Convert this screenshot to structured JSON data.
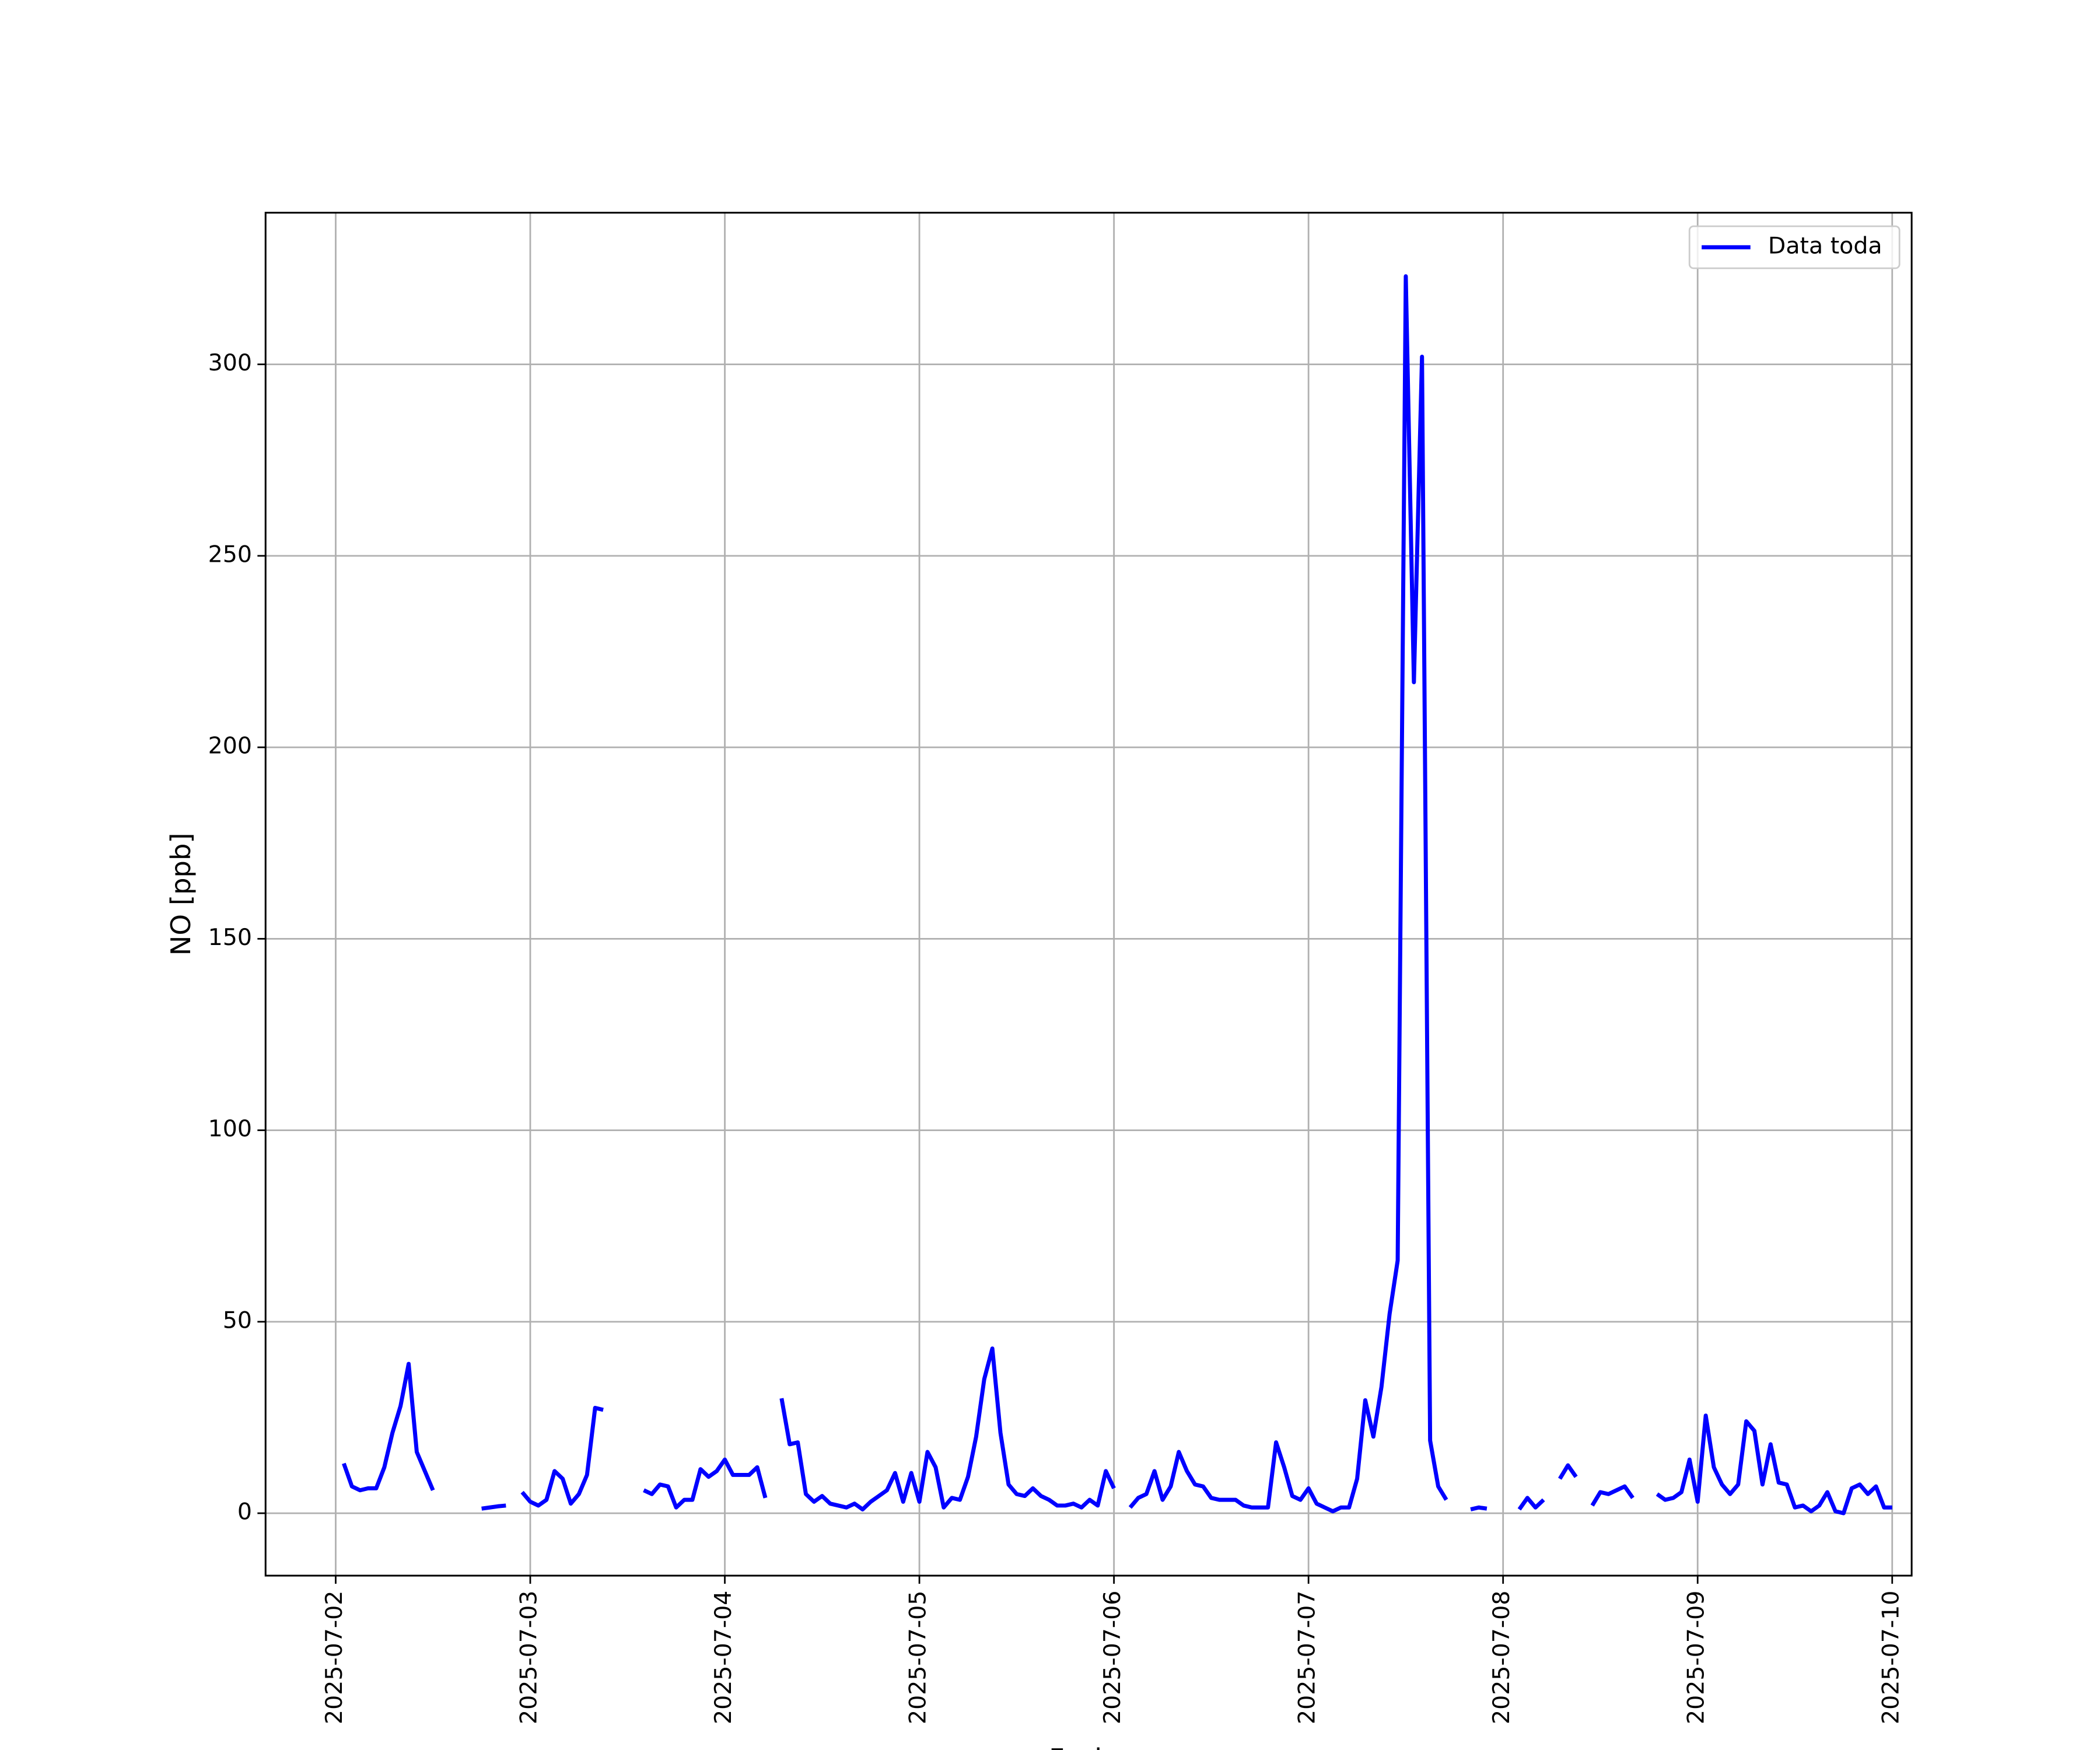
{
  "chart_data": {
    "type": "line",
    "xlabel": "Fecha",
    "ylabel": "NO [ppb]",
    "grid": true,
    "legend": "upper right",
    "series": [
      {
        "name": "Data toda",
        "color": "#0000ff",
        "x": [
          "2025-07-02 01:00",
          "2025-07-02 02:00",
          "2025-07-02 03:00",
          "2025-07-02 04:00",
          "2025-07-02 05:00",
          "2025-07-02 06:00",
          "2025-07-02 07:00",
          "2025-07-02 08:00",
          "2025-07-02 09:00",
          "2025-07-02 10:00",
          "2025-07-02 11:00",
          "2025-07-02 12:00",
          "2025-07-02 13:00",
          "2025-07-02 14:00",
          "2025-07-02 15:00",
          "2025-07-02 16:00",
          "2025-07-02 17:00",
          "2025-07-02 18:00",
          "2025-07-02 19:00",
          "2025-07-02 20:00",
          "2025-07-02 21:00",
          "2025-07-02 22:00",
          "2025-07-02 23:00",
          "2025-07-03 00:00",
          "2025-07-03 01:00",
          "2025-07-03 02:00",
          "2025-07-03 03:00",
          "2025-07-03 04:00",
          "2025-07-03 05:00",
          "2025-07-03 06:00",
          "2025-07-03 07:00",
          "2025-07-03 08:00",
          "2025-07-03 09:00",
          "2025-07-03 10:00",
          "2025-07-03 11:00",
          "2025-07-03 12:00",
          "2025-07-03 13:00",
          "2025-07-03 14:00",
          "2025-07-03 15:00",
          "2025-07-03 16:00",
          "2025-07-03 17:00",
          "2025-07-03 18:00",
          "2025-07-03 19:00",
          "2025-07-03 20:00",
          "2025-07-03 21:00",
          "2025-07-03 22:00",
          "2025-07-03 23:00",
          "2025-07-04 00:00",
          "2025-07-04 01:00",
          "2025-07-04 02:00",
          "2025-07-04 03:00",
          "2025-07-04 04:00",
          "2025-07-04 05:00",
          "2025-07-04 06:00",
          "2025-07-04 07:00",
          "2025-07-04 08:00",
          "2025-07-04 09:00",
          "2025-07-04 10:00",
          "2025-07-04 11:00",
          "2025-07-04 12:00",
          "2025-07-04 13:00",
          "2025-07-04 14:00",
          "2025-07-04 15:00",
          "2025-07-04 16:00",
          "2025-07-04 17:00",
          "2025-07-04 18:00",
          "2025-07-04 19:00",
          "2025-07-04 20:00",
          "2025-07-04 21:00",
          "2025-07-04 22:00",
          "2025-07-04 23:00",
          "2025-07-05 00:00",
          "2025-07-05 01:00",
          "2025-07-05 02:00",
          "2025-07-05 03:00",
          "2025-07-05 04:00",
          "2025-07-05 05:00",
          "2025-07-05 06:00",
          "2025-07-05 07:00",
          "2025-07-05 08:00",
          "2025-07-05 09:00",
          "2025-07-05 10:00",
          "2025-07-05 11:00",
          "2025-07-05 12:00",
          "2025-07-05 13:00",
          "2025-07-05 14:00",
          "2025-07-05 15:00",
          "2025-07-05 16:00",
          "2025-07-05 17:00",
          "2025-07-05 18:00",
          "2025-07-05 19:00",
          "2025-07-05 20:00",
          "2025-07-05 21:00",
          "2025-07-05 22:00",
          "2025-07-05 23:00",
          "2025-07-06 00:00",
          "2025-07-06 01:00",
          "2025-07-06 02:00",
          "2025-07-06 03:00",
          "2025-07-06 04:00",
          "2025-07-06 05:00",
          "2025-07-06 06:00",
          "2025-07-06 07:00",
          "2025-07-06 08:00",
          "2025-07-06 09:00",
          "2025-07-06 10:00",
          "2025-07-06 11:00",
          "2025-07-06 12:00",
          "2025-07-06 13:00",
          "2025-07-06 14:00",
          "2025-07-06 15:00",
          "2025-07-06 16:00",
          "2025-07-06 17:00",
          "2025-07-06 18:00",
          "2025-07-06 19:00",
          "2025-07-06 20:00",
          "2025-07-06 21:00",
          "2025-07-06 22:00",
          "2025-07-06 23:00",
          "2025-07-07 00:00",
          "2025-07-07 01:00",
          "2025-07-07 02:00",
          "2025-07-07 03:00",
          "2025-07-07 04:00",
          "2025-07-07 05:00",
          "2025-07-07 06:00",
          "2025-07-07 07:00",
          "2025-07-07 08:00",
          "2025-07-07 09:00",
          "2025-07-07 10:00",
          "2025-07-07 11:00",
          "2025-07-07 12:00",
          "2025-07-07 13:00",
          "2025-07-07 14:00",
          "2025-07-07 15:00",
          "2025-07-07 16:00",
          "2025-07-07 17:00",
          "2025-07-07 18:00",
          "2025-07-07 19:00",
          "2025-07-07 20:00",
          "2025-07-07 21:00",
          "2025-07-07 22:00",
          "2025-07-07 23:00",
          "2025-07-08 00:00",
          "2025-07-08 01:00",
          "2025-07-08 02:00",
          "2025-07-08 03:00",
          "2025-07-08 04:00",
          "2025-07-08 05:00",
          "2025-07-08 06:00",
          "2025-07-08 07:00",
          "2025-07-08 08:00",
          "2025-07-08 09:00",
          "2025-07-08 10:00",
          "2025-07-08 11:00",
          "2025-07-08 12:00",
          "2025-07-08 13:00",
          "2025-07-08 14:00",
          "2025-07-08 15:00",
          "2025-07-08 16:00",
          "2025-07-08 17:00",
          "2025-07-08 18:00",
          "2025-07-08 19:00",
          "2025-07-08 20:00",
          "2025-07-08 21:00",
          "2025-07-08 22:00",
          "2025-07-08 23:00",
          "2025-07-09 00:00",
          "2025-07-09 01:00",
          "2025-07-09 02:00",
          "2025-07-09 03:00",
          "2025-07-09 04:00",
          "2025-07-09 05:00",
          "2025-07-09 06:00",
          "2025-07-09 07:00",
          "2025-07-09 08:00",
          "2025-07-09 09:00",
          "2025-07-09 10:00",
          "2025-07-09 11:00",
          "2025-07-09 12:00",
          "2025-07-09 13:00",
          "2025-07-09 14:00",
          "2025-07-09 15:00",
          "2025-07-09 16:00",
          "2025-07-09 17:00",
          "2025-07-09 18:00",
          "2025-07-09 19:00",
          "2025-07-09 20:00",
          "2025-07-09 21:00",
          "2025-07-09 22:00",
          "2025-07-09 23:00",
          "2025-07-10 00:00"
        ],
        "values": [
          13,
          7,
          6,
          6.5,
          6.5,
          12,
          21,
          28,
          39,
          16,
          11,
          6,
          null,
          null,
          null,
          null,
          null,
          1.2,
          1.5,
          1.8,
          2,
          null,
          5.5,
          3,
          2,
          3.5,
          11,
          9,
          2.5,
          5,
          10,
          27.5,
          27,
          null,
          null,
          null,
          null,
          6,
          5,
          7.5,
          7,
          1.5,
          3.5,
          3.5,
          11.5,
          9.5,
          11,
          14,
          10,
          10,
          10,
          12,
          4,
          null,
          30,
          18,
          18.5,
          5,
          3,
          4.5,
          2.5,
          2,
          1.5,
          2.5,
          1,
          3,
          4.5,
          6,
          10.5,
          3,
          10.5,
          3,
          16,
          12,
          1.5,
          4,
          3.5,
          9.5,
          20,
          35,
          43,
          21,
          7.5,
          5,
          4.5,
          6.5,
          4.5,
          3.5,
          2,
          2,
          2.5,
          1.5,
          3.5,
          2,
          11,
          6.5,
          null,
          1.5,
          4,
          5,
          11,
          3.5,
          7,
          16,
          11,
          7.5,
          7,
          4,
          3.5,
          3.5,
          3.5,
          2,
          1.5,
          1.5,
          1.5,
          18.5,
          12,
          4.5,
          3.5,
          6.5,
          2.5,
          1.5,
          0.5,
          1.5,
          1.5,
          9,
          29.5,
          20,
          33,
          52,
          66,
          323,
          217,
          302,
          19,
          7,
          3.5,
          null,
          null,
          1,
          1.5,
          1.2,
          null,
          null,
          null,
          1,
          4,
          1.5,
          3.5,
          null,
          9,
          12.5,
          9.5,
          null,
          2,
          5.5,
          5,
          6,
          7,
          4,
          null,
          null,
          5,
          3.5,
          4,
          5.5,
          14,
          3,
          25.5,
          12,
          7.5,
          5,
          7.5,
          24,
          21.5,
          7.5,
          18,
          8,
          7.5,
          1.5,
          2,
          0.5,
          2,
          5.5,
          0.5,
          0,
          6.5,
          7.5,
          5,
          7,
          1.5,
          1.5
        ]
      }
    ],
    "xlim": [
      "2025-07-01 15:21",
      "2025-07-10 02:24"
    ],
    "xticks": [
      "2025-07-02",
      "2025-07-03",
      "2025-07-04",
      "2025-07-05",
      "2025-07-06",
      "2025-07-07",
      "2025-07-08",
      "2025-07-09",
      "2025-07-10"
    ],
    "ylim": [
      -16.3,
      339.6
    ],
    "yticks": [
      0,
      50,
      100,
      150,
      200,
      250,
      300
    ]
  }
}
